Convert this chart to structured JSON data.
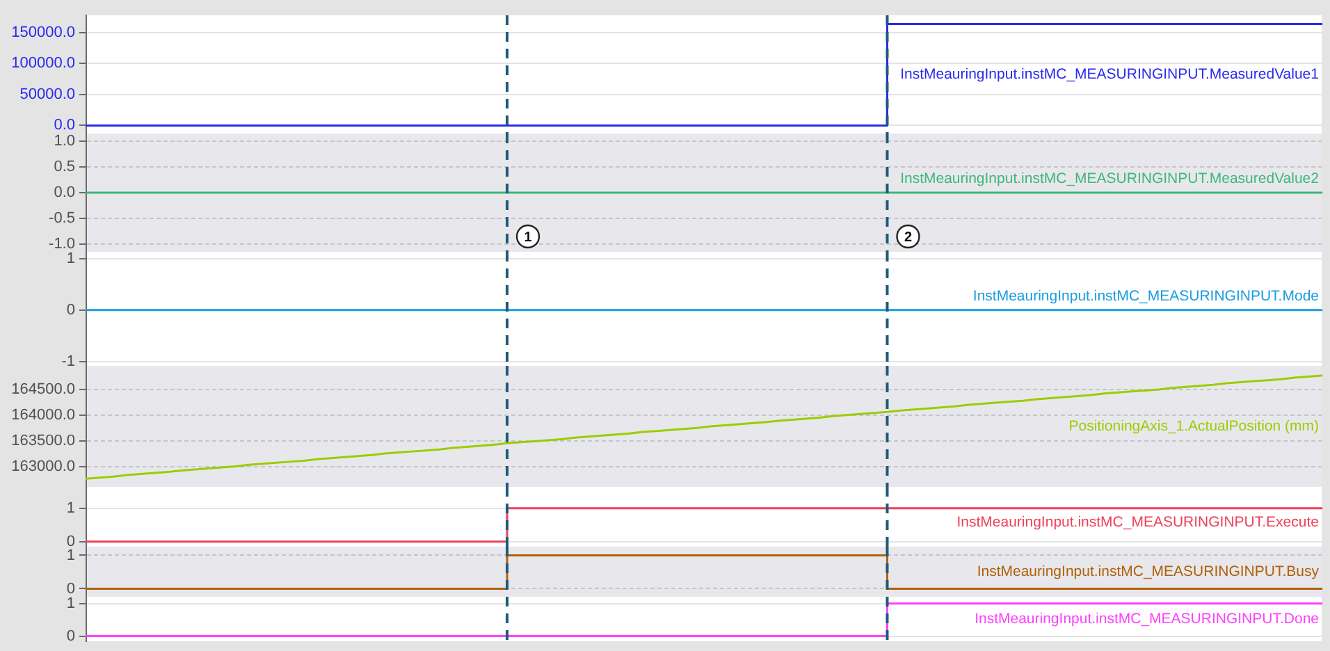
{
  "chart_data": [
    {
      "type": "step",
      "categories": [
        null,
        null,
        null,
        null,
        null,
        null,
        null,
        null,
        null,
        null,
        null,
        null,
        null,
        null,
        null,
        null,
        null,
        null,
        null,
        null,
        null,
        null,
        null,
        null,
        null,
        null,
        null,
        null,
        null,
        null,
        null,
        null,
        null,
        null,
        null,
        null,
        null,
        null,
        null,
        null,
        null,
        null,
        null,
        null,
        null,
        null,
        null,
        null,
        null,
        null,
        null,
        null,
        null,
        null,
        null,
        null,
        null,
        null,
        null,
        null,
        null,
        null,
        null,
        null,
        null,
        null,
        null,
        null,
        null,
        null,
        null,
        null,
        null,
        null,
        null,
        null,
        null,
        null,
        null,
        null,
        null,
        null,
        null,
        null,
        null,
        null,
        null,
        null,
        null,
        null,
        null,
        null
      ],
      "series": [
        {
          "name": "InstMeauringInput.instMC_MEASURINGINPUT.MeasuredValue1",
          "color": "#2a2af0",
          "values": [
            0,
            0,
            0,
            0,
            0,
            0,
            0,
            0,
            0,
            0,
            0,
            0,
            0,
            0,
            0,
            0,
            0,
            0,
            0,
            0,
            0,
            0,
            0,
            0,
            0,
            0,
            0,
            0,
            0,
            0,
            0,
            0,
            0,
            0,
            0,
            0,
            0,
            0,
            0,
            0,
            0,
            0,
            0,
            0,
            0,
            0,
            0,
            0,
            0,
            0,
            0,
            0,
            0,
            0,
            0,
            0,
            0,
            0,
            0,
            164000,
            164000,
            164000,
            164000,
            164000,
            164000,
            164000,
            164000,
            164000,
            164000,
            164000,
            164000,
            164000,
            164000,
            164000,
            164000,
            164000,
            164000,
            164000,
            164000,
            164000,
            164000,
            164000,
            164000,
            164000,
            164000,
            164000,
            164000,
            164000,
            164000,
            164000,
            164000,
            164000
          ]
        }
      ],
      "ylim": [
        -13000,
        178000
      ],
      "yticks": [
        {
          "value": 0,
          "label": "0.0"
        },
        {
          "value": 50000,
          "label": "50000.0"
        },
        {
          "value": 100000,
          "label": "100000.0"
        },
        {
          "value": 150000,
          "label": "150000.0"
        }
      ],
      "grid": "y",
      "tick_labels": "y"
    },
    {
      "type": "step",
      "categories": [
        null,
        null,
        null,
        null,
        null,
        null,
        null,
        null,
        null,
        null,
        null,
        null,
        null,
        null,
        null,
        null,
        null,
        null,
        null,
        null,
        null,
        null,
        null,
        null,
        null,
        null,
        null,
        null,
        null,
        null,
        null,
        null,
        null,
        null,
        null,
        null,
        null,
        null,
        null,
        null,
        null,
        null,
        null,
        null,
        null,
        null,
        null,
        null,
        null,
        null,
        null,
        null,
        null,
        null,
        null,
        null,
        null,
        null,
        null,
        null,
        null,
        null,
        null,
        null,
        null,
        null,
        null,
        null,
        null,
        null,
        null,
        null,
        null,
        null,
        null,
        null,
        null,
        null,
        null,
        null,
        null,
        null,
        null,
        null,
        null,
        null,
        null,
        null,
        null,
        null,
        null,
        null
      ],
      "series": [
        {
          "name": "InstMeauringInput.instMC_MEASURINGINPUT.MeasuredValue2",
          "color": "#3cb878",
          "values": [
            0,
            0,
            0,
            0,
            0,
            0,
            0,
            0,
            0,
            0,
            0,
            0,
            0,
            0,
            0,
            0,
            0,
            0,
            0,
            0,
            0,
            0,
            0,
            0,
            0,
            0,
            0,
            0,
            0,
            0,
            0,
            0,
            0,
            0,
            0,
            0,
            0,
            0,
            0,
            0,
            0,
            0,
            0,
            0,
            0,
            0,
            0,
            0,
            0,
            0,
            0,
            0,
            0,
            0,
            0,
            0,
            0,
            0,
            0,
            0,
            0,
            0,
            0,
            0,
            0,
            0,
            0,
            0,
            0,
            0,
            0,
            0,
            0,
            0,
            0,
            0,
            0,
            0,
            0,
            0,
            0,
            0,
            0,
            0,
            0,
            0,
            0,
            0,
            0,
            0,
            0,
            0
          ]
        }
      ],
      "ylim": [
        -1.15,
        1.15
      ],
      "yticks": [
        {
          "value": -1,
          "label": "-1.0"
        },
        {
          "value": -0.5,
          "label": "-0.5"
        },
        {
          "value": 0,
          "label": "0.0"
        },
        {
          "value": 0.5,
          "label": "0.5"
        },
        {
          "value": 1,
          "label": "1.0"
        }
      ],
      "grid": "y",
      "tick_labels": "y",
      "annotations": [
        "1",
        "2"
      ]
    },
    {
      "type": "step",
      "categories": [
        null,
        null,
        null,
        null,
        null,
        null,
        null,
        null,
        null,
        null,
        null,
        null,
        null,
        null,
        null,
        null,
        null,
        null,
        null,
        null,
        null,
        null,
        null,
        null,
        null,
        null,
        null,
        null,
        null,
        null,
        null,
        null,
        null,
        null,
        null,
        null,
        null,
        null,
        null,
        null,
        null,
        null,
        null,
        null,
        null,
        null,
        null,
        null,
        null,
        null,
        null,
        null,
        null,
        null,
        null,
        null,
        null,
        null,
        null,
        null,
        null,
        null,
        null,
        null,
        null,
        null,
        null,
        null,
        null,
        null,
        null,
        null,
        null,
        null,
        null,
        null,
        null,
        null,
        null,
        null,
        null,
        null,
        null,
        null,
        null,
        null,
        null,
        null,
        null,
        null,
        null,
        null
      ],
      "series": [
        {
          "name": "InstMeauringInput.instMC_MEASURINGINPUT.Mode",
          "color": "#1a9de0",
          "values": [
            0,
            0,
            0,
            0,
            0,
            0,
            0,
            0,
            0,
            0,
            0,
            0,
            0,
            0,
            0,
            0,
            0,
            0,
            0,
            0,
            0,
            0,
            0,
            0,
            0,
            0,
            0,
            0,
            0,
            0,
            0,
            0,
            0,
            0,
            0,
            0,
            0,
            0,
            0,
            0,
            0,
            0,
            0,
            0,
            0,
            0,
            0,
            0,
            0,
            0,
            0,
            0,
            0,
            0,
            0,
            0,
            0,
            0,
            0,
            0,
            0,
            0,
            0,
            0,
            0,
            0,
            0,
            0,
            0,
            0,
            0,
            0,
            0,
            0,
            0,
            0,
            0,
            0,
            0,
            0,
            0,
            0,
            0,
            0,
            0,
            0,
            0,
            0,
            0,
            0,
            0,
            0
          ]
        }
      ],
      "ylim": [
        -1.08,
        1.13
      ],
      "yticks": [
        -1,
        0,
        1
      ],
      "grid": "y",
      "tick_labels": "y"
    },
    {
      "type": "line",
      "categories": [
        null,
        null,
        null,
        null,
        null,
        null,
        null,
        null,
        null,
        null,
        null,
        null,
        null,
        null,
        null,
        null,
        null,
        null,
        null,
        null,
        null,
        null,
        null,
        null,
        null,
        null,
        null,
        null,
        null,
        null,
        null,
        null,
        null,
        null,
        null,
        null,
        null,
        null,
        null,
        null,
        null,
        null,
        null,
        null,
        null,
        null,
        null,
        null,
        null,
        null,
        null,
        null,
        null,
        null,
        null,
        null,
        null,
        null,
        null,
        null,
        null,
        null,
        null,
        null,
        null,
        null,
        null,
        null,
        null,
        null,
        null,
        null,
        null,
        null,
        null,
        null,
        null,
        null,
        null,
        null,
        null,
        null,
        null,
        null,
        null,
        null,
        null,
        null,
        null,
        null,
        null,
        null
      ],
      "series": [
        {
          "name": "PositioningAxis_1.ActualPosition (mm)",
          "color": "#9ccc00",
          "values": [
            162760,
            162780,
            162800,
            162830,
            162850,
            162870,
            162890,
            162920,
            162940,
            162960,
            162980,
            163000,
            163030,
            163050,
            163070,
            163090,
            163110,
            163140,
            163160,
            163180,
            163200,
            163220,
            163250,
            163270,
            163290,
            163310,
            163330,
            163360,
            163380,
            163400,
            163420,
            163450,
            163470,
            163490,
            163510,
            163530,
            163560,
            163580,
            163600,
            163620,
            163640,
            163670,
            163690,
            163710,
            163730,
            163750,
            163780,
            163800,
            163820,
            163840,
            163860,
            163890,
            163910,
            163930,
            163950,
            163980,
            164000,
            164020,
            164040,
            164060,
            164090,
            164110,
            164130,
            164150,
            164170,
            164200,
            164220,
            164240,
            164260,
            164280,
            164310,
            164330,
            164350,
            164370,
            164390,
            164420,
            164440,
            164460,
            164480,
            164500,
            164530,
            164550,
            164570,
            164590,
            164620,
            164640,
            164660,
            164680,
            164700,
            164730,
            164750,
            164770
          ]
        }
      ],
      "ylim": [
        162600,
        164960
      ],
      "yticks": [
        {
          "value": 163000,
          "label": "163000.0"
        },
        {
          "value": 163500,
          "label": "163500.0"
        },
        {
          "value": 164000,
          "label": "164000.0"
        },
        {
          "value": 164500,
          "label": "164500.0"
        }
      ],
      "grid": "y",
      "tick_labels": "y"
    },
    {
      "type": "step",
      "categories": [
        null,
        null,
        null,
        null,
        null,
        null,
        null,
        null,
        null,
        null,
        null,
        null,
        null,
        null,
        null,
        null,
        null,
        null,
        null,
        null,
        null,
        null,
        null,
        null,
        null,
        null,
        null,
        null,
        null,
        null,
        null,
        null,
        null,
        null,
        null,
        null,
        null,
        null,
        null,
        null,
        null,
        null,
        null,
        null,
        null,
        null,
        null,
        null,
        null,
        null,
        null,
        null,
        null,
        null,
        null,
        null,
        null,
        null,
        null,
        null,
        null,
        null,
        null,
        null,
        null,
        null,
        null,
        null,
        null,
        null,
        null,
        null,
        null,
        null,
        null,
        null,
        null,
        null,
        null,
        null,
        null,
        null,
        null,
        null,
        null,
        null,
        null,
        null,
        null,
        null,
        null,
        null
      ],
      "series": [
        {
          "name": "InstMeauringInput.instMC_MEASURINGINPUT.Execute",
          "color": "#f0405a",
          "values": [
            0,
            0,
            0,
            0,
            0,
            0,
            0,
            0,
            0,
            0,
            0,
            0,
            0,
            0,
            0,
            0,
            0,
            0,
            0,
            0,
            0,
            0,
            0,
            0,
            0,
            0,
            0,
            0,
            0,
            0,
            0,
            1,
            1,
            1,
            1,
            1,
            1,
            1,
            1,
            1,
            1,
            1,
            1,
            1,
            1,
            1,
            1,
            1,
            1,
            1,
            1,
            1,
            1,
            1,
            1,
            1,
            1,
            1,
            1,
            1,
            1,
            1,
            1,
            1,
            1,
            1,
            1,
            1,
            1,
            1,
            1,
            1,
            1,
            1,
            1,
            1,
            1,
            1,
            1,
            1,
            1,
            1,
            1,
            1,
            1,
            1,
            1,
            1,
            1,
            1,
            1,
            1
          ]
        }
      ],
      "ylim": [
        -0.15,
        1.64
      ],
      "yticks": [
        0,
        1
      ],
      "grid": "y",
      "tick_labels": "y"
    },
    {
      "type": "step",
      "categories": [
        null,
        null,
        null,
        null,
        null,
        null,
        null,
        null,
        null,
        null,
        null,
        null,
        null,
        null,
        null,
        null,
        null,
        null,
        null,
        null,
        null,
        null,
        null,
        null,
        null,
        null,
        null,
        null,
        null,
        null,
        null,
        null,
        null,
        null,
        null,
        null,
        null,
        null,
        null,
        null,
        null,
        null,
        null,
        null,
        null,
        null,
        null,
        null,
        null,
        null,
        null,
        null,
        null,
        null,
        null,
        null,
        null,
        null,
        null,
        null,
        null,
        null,
        null,
        null,
        null,
        null,
        null,
        null,
        null,
        null,
        null,
        null,
        null,
        null,
        null,
        null,
        null,
        null,
        null,
        null,
        null,
        null,
        null,
        null,
        null,
        null,
        null,
        null,
        null,
        null,
        null,
        null
      ],
      "series": [
        {
          "name": "InstMeauringInput.instMC_MEASURINGINPUT.Busy",
          "color": "#b0600a",
          "values": [
            0,
            0,
            0,
            0,
            0,
            0,
            0,
            0,
            0,
            0,
            0,
            0,
            0,
            0,
            0,
            0,
            0,
            0,
            0,
            0,
            0,
            0,
            0,
            0,
            0,
            0,
            0,
            0,
            0,
            0,
            0,
            1,
            1,
            1,
            1,
            1,
            1,
            1,
            1,
            1,
            1,
            1,
            1,
            1,
            1,
            1,
            1,
            1,
            1,
            1,
            1,
            1,
            1,
            1,
            1,
            1,
            1,
            1,
            1,
            0,
            0,
            0,
            0,
            0,
            0,
            0,
            0,
            0,
            0,
            0,
            0,
            0,
            0,
            0,
            0,
            0,
            0,
            0,
            0,
            0,
            0,
            0,
            0,
            0,
            0,
            0,
            0,
            0,
            0,
            0,
            0,
            0
          ]
        }
      ],
      "ylim": [
        -0.24,
        1.26
      ],
      "yticks": [
        0,
        1
      ],
      "grid": "y",
      "tick_labels": "y"
    },
    {
      "type": "step",
      "categories": [
        null,
        null,
        null,
        null,
        null,
        null,
        null,
        null,
        null,
        null,
        null,
        null,
        null,
        null,
        null,
        null,
        null,
        null,
        null,
        null,
        null,
        null,
        null,
        null,
        null,
        null,
        null,
        null,
        null,
        null,
        null,
        null,
        null,
        null,
        null,
        null,
        null,
        null,
        null,
        null,
        null,
        null,
        null,
        null,
        null,
        null,
        null,
        null,
        null,
        null,
        null,
        null,
        null,
        null,
        null,
        null,
        null,
        null,
        null,
        null,
        null,
        null,
        null,
        null,
        null,
        null,
        null,
        null,
        null,
        null,
        null,
        null,
        null,
        null,
        null,
        null,
        null,
        null,
        null,
        null,
        null,
        null,
        null,
        null,
        null,
        null,
        null,
        null,
        null,
        null,
        null,
        null
      ],
      "series": [
        {
          "name": "InstMeauringInput.instMC_MEASURINGINPUT.Done",
          "color": "#ff40ff",
          "values": [
            0,
            0,
            0,
            0,
            0,
            0,
            0,
            0,
            0,
            0,
            0,
            0,
            0,
            0,
            0,
            0,
            0,
            0,
            0,
            0,
            0,
            0,
            0,
            0,
            0,
            0,
            0,
            0,
            0,
            0,
            0,
            0,
            0,
            0,
            0,
            0,
            0,
            0,
            0,
            0,
            0,
            0,
            0,
            0,
            0,
            0,
            0,
            0,
            0,
            0,
            0,
            0,
            0,
            0,
            0,
            0,
            0,
            0,
            0,
            1,
            1,
            1,
            1,
            1,
            1,
            1,
            1,
            1,
            1,
            1,
            1,
            1,
            1,
            1,
            1,
            1,
            1,
            1,
            1,
            1,
            1,
            1,
            1,
            1,
            1,
            1,
            1,
            1,
            1,
            1,
            1,
            1
          ]
        }
      ],
      "ylim": [
        -0.16,
        1.21
      ],
      "yticks": [
        0,
        1
      ],
      "grid": "y",
      "tick_labels": "y"
    }
  ]
}
